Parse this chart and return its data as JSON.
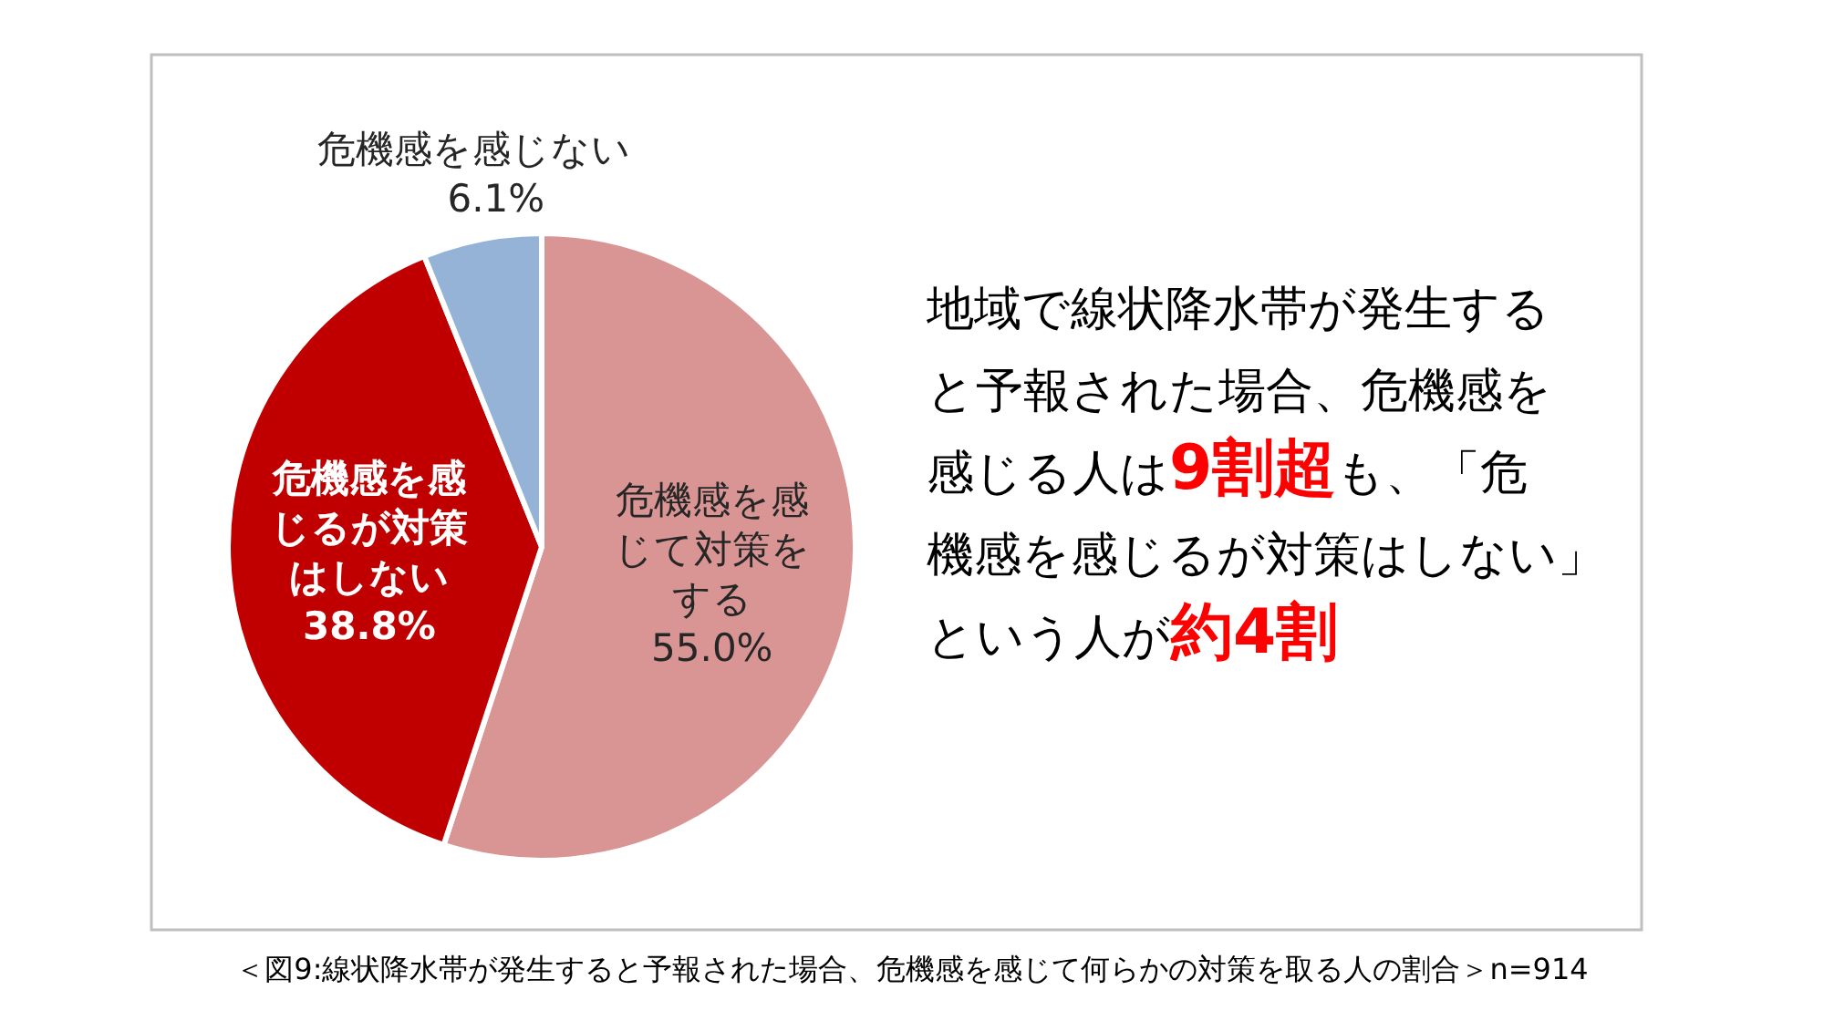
{
  "chart_data": {
    "type": "pie",
    "categories": [
      "危機感を感じて対策をする",
      "危機感を感じるが対策はしない",
      "危機感を感じない"
    ],
    "values": [
      55.0,
      38.8,
      6.1
    ],
    "colors": [
      "#d99594",
      "#c00000",
      "#95b3d7"
    ],
    "value_labels": [
      "55.0%",
      "38.8%",
      "6.1%"
    ],
    "annotations": [
      "地域で線状降水帯が発生すると予報された場合、危機感を感じる人は",
      "9割超",
      "も、「危機感を感じるが対策はしない」という人が",
      "約4割",
      "＜図9:線状降水帯が発生すると予報された場合、危機感を感じて何らかの対策を取る人の割合＞n=914"
    ]
  }
}
